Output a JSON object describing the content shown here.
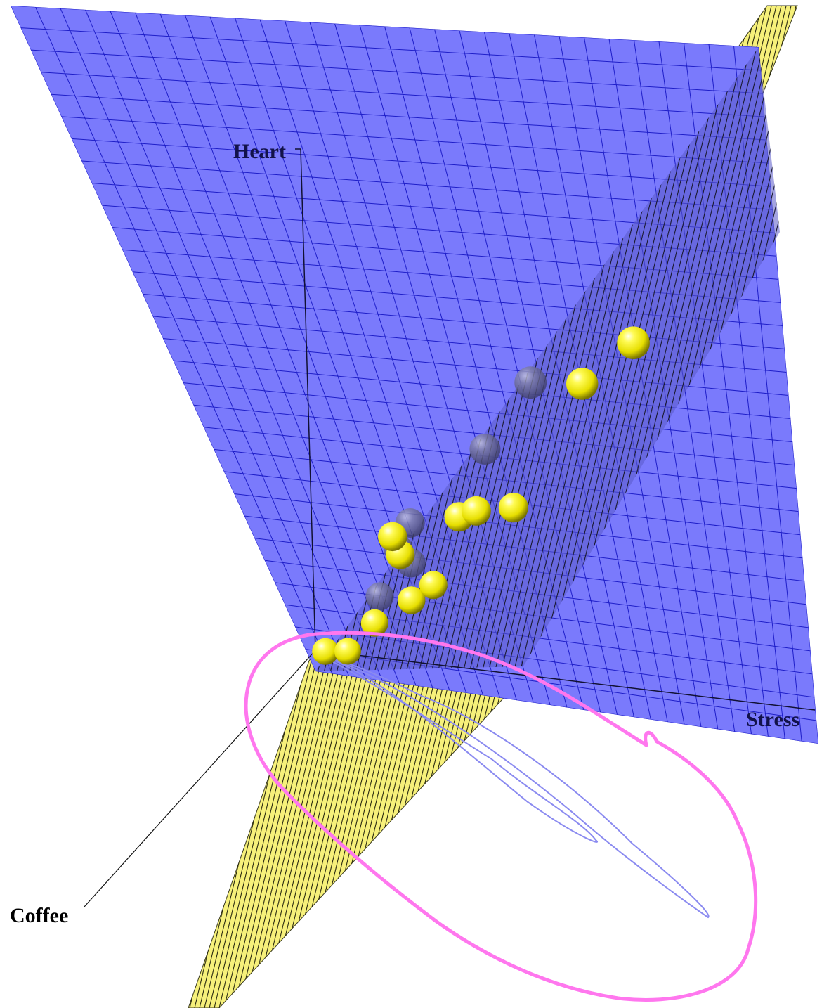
{
  "chart_data": {
    "type": "scatter",
    "title": "",
    "axes": {
      "x": "Stress",
      "y": "Heart",
      "z": "Coffee"
    },
    "projection": "3d",
    "surfaces": [
      {
        "name": "",
        "color": "#7a7afc",
        "style": "grid"
      },
      {
        "name": "",
        "color": "#f6f07a",
        "style": "grid"
      }
    ],
    "series": [
      {
        "name": "",
        "color": "#f2ec1a",
        "points": [
          {
            "stress": 0.02,
            "heart": 0.0,
            "coffee": 0.0
          },
          {
            "stress": 0.06,
            "heart": 0.0,
            "coffee": -0.01
          },
          {
            "stress": 0.13,
            "heart": 0.08,
            "coffee": 0.02
          },
          {
            "stress": 0.21,
            "heart": 0.14,
            "coffee": 0.03
          },
          {
            "stress": 0.25,
            "heart": 0.17,
            "coffee": 0.02
          },
          {
            "stress": 0.2,
            "heart": 0.24,
            "coffee": 0.05
          },
          {
            "stress": 0.19,
            "heart": 0.28,
            "coffee": 0.06
          },
          {
            "stress": 0.32,
            "heart": 0.33,
            "coffee": 0.05
          },
          {
            "stress": 0.35,
            "heart": 0.34,
            "coffee": 0.04
          },
          {
            "stress": 0.42,
            "heart": 0.35,
            "coffee": 0.03
          },
          {
            "stress": 0.57,
            "heart": 0.62,
            "coffee": 0.04
          },
          {
            "stress": 0.68,
            "heart": 0.72,
            "coffee": 0.05
          }
        ]
      },
      {
        "name": "",
        "color": "#6a6a8e",
        "points": [
          {
            "stress": 0.18,
            "heart": 0.18,
            "coffee": 0.1
          },
          {
            "stress": 0.25,
            "heart": 0.26,
            "coffee": 0.11
          },
          {
            "stress": 0.23,
            "heart": 0.29,
            "coffee": 0.12
          },
          {
            "stress": 0.25,
            "heart": 0.34,
            "coffee": 0.11
          },
          {
            "stress": 0.4,
            "heart": 0.5,
            "coffee": 0.1
          },
          {
            "stress": 0.5,
            "heart": 0.65,
            "coffee": 0.11
          }
        ]
      }
    ],
    "annotations": [
      {
        "type": "freehand-loop",
        "color": "#ff77ee"
      }
    ],
    "grid": true,
    "legend": "none"
  }
}
